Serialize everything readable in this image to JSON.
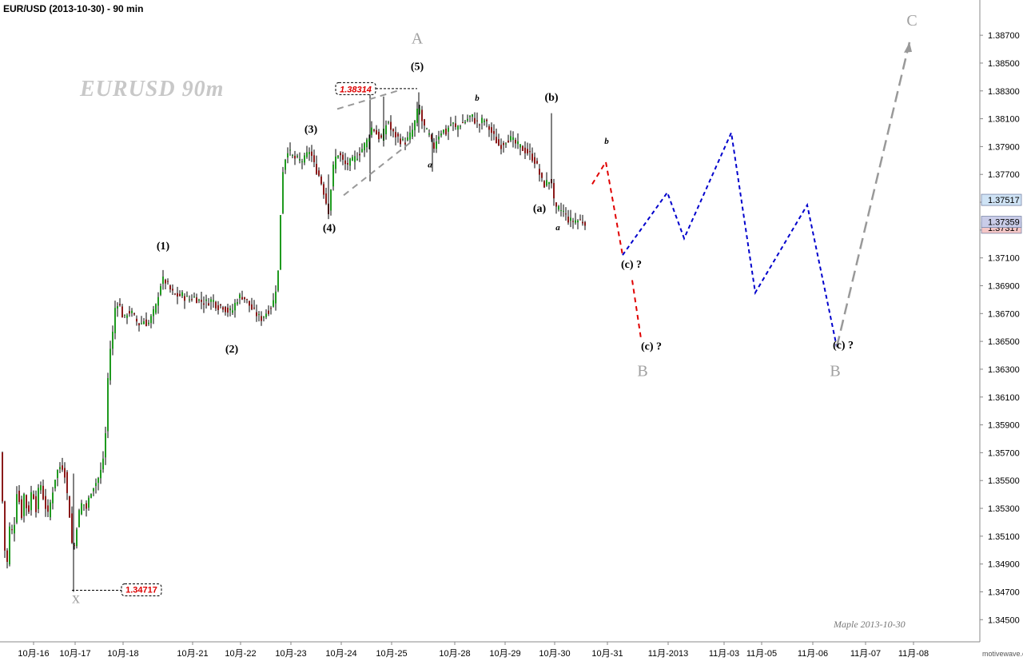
{
  "header": {
    "title": "EUR/USD (2013-10-30) - 90 min"
  },
  "watermark": "EURUSD  90m",
  "signature": "Maple  2013-10-30",
  "brand": "motivewave.com",
  "colors": {
    "up": "#1f9a1f",
    "down": "#8b1a1a",
    "wick": "#000000",
    "red_path": "#e00000",
    "blue_path": "#0000cc",
    "gray_path": "#999999",
    "label_gray": "#a0a0a0",
    "price_red": "#dd0000"
  },
  "chart_data": {
    "type": "candlestick",
    "title": "EUR/USD (2013-10-30) - 90 min",
    "y_axis": {
      "min": 1.3445,
      "max": 1.3885,
      "side": "right",
      "ticks": [
        "1.34500",
        "1.34700",
        "1.34900",
        "1.35100",
        "1.35300",
        "1.35500",
        "1.35700",
        "1.35900",
        "1.36100",
        "1.36300",
        "1.36500",
        "1.36700",
        "1.36900",
        "1.37100",
        "1.37300",
        "1.37500",
        "1.37700",
        "1.37900",
        "1.38100",
        "1.38300",
        "1.38500",
        "1.38700"
      ]
    },
    "x_axis": {
      "ticks": [
        "10月-16",
        "10月-17",
        "10月-18",
        "10月-21",
        "10月-22",
        "10月-23",
        "10月-24",
        "10月-25",
        "10月-28",
        "10月-29",
        "10月-30",
        "10月-31",
        "11月-2013",
        "11月-03",
        "11月-05",
        "11月-06",
        "11月-07",
        "11月-08"
      ]
    },
    "price_tags": [
      {
        "text": "1.37517",
        "value": 1.37517,
        "bg": "#cfe3f5"
      },
      {
        "text": "1.37317",
        "value": 1.37317,
        "bg": "#f5c6c6"
      },
      {
        "text": "1.37359",
        "value": 1.37359,
        "bg": "#c9cce8"
      }
    ],
    "key_levels": [
      {
        "text": "1.38314",
        "value": 1.38314
      },
      {
        "text": "1.34717",
        "value": 1.34717
      }
    ],
    "anchors": [
      [
        0,
        1.357
      ],
      [
        6,
        1.35
      ],
      [
        10,
        1.3488
      ],
      [
        13,
        1.353
      ],
      [
        16,
        1.3505
      ],
      [
        22,
        1.355
      ],
      [
        26,
        1.352
      ],
      [
        30,
        1.354
      ],
      [
        35,
        1.3525
      ],
      [
        40,
        1.3545
      ],
      [
        45,
        1.353
      ],
      [
        50,
        1.355
      ],
      [
        55,
        1.3535
      ],
      [
        60,
        1.3525
      ],
      [
        65,
        1.354
      ],
      [
        70,
        1.3555
      ],
      [
        75,
        1.356
      ],
      [
        80,
        1.356
      ],
      [
        84,
        1.354
      ],
      [
        86,
        1.3528
      ],
      [
        89,
        1.352
      ],
      [
        91,
        1.349
      ],
      [
        94,
        1.351
      ],
      [
        98,
        1.3525
      ],
      [
        103,
        1.3535
      ],
      [
        108,
        1.353
      ],
      [
        115,
        1.3545
      ],
      [
        122,
        1.355
      ],
      [
        128,
        1.356
      ],
      [
        133,
        1.359
      ],
      [
        136,
        1.364
      ],
      [
        140,
        1.365
      ],
      [
        145,
        1.368
      ],
      [
        150,
        1.3675
      ],
      [
        155,
        1.3665
      ],
      [
        160,
        1.3672
      ],
      [
        165,
        1.367
      ],
      [
        170,
        1.3665
      ],
      [
        175,
        1.3662
      ],
      [
        180,
        1.3665
      ],
      [
        185,
        1.3662
      ],
      [
        190,
        1.3668
      ],
      [
        195,
        1.3675
      ],
      [
        200,
        1.369
      ],
      [
        205,
        1.3695
      ],
      [
        210,
        1.369
      ],
      [
        215,
        1.3685
      ],
      [
        220,
        1.3683
      ],
      [
        228,
        1.3683
      ],
      [
        236,
        1.368
      ],
      [
        242,
        1.3682
      ],
      [
        250,
        1.3679
      ],
      [
        258,
        1.3678
      ],
      [
        266,
        1.368
      ],
      [
        272,
        1.3675
      ],
      [
        278,
        1.3676
      ],
      [
        284,
        1.3672
      ],
      [
        290,
        1.3671
      ],
      [
        296,
        1.368
      ],
      [
        302,
        1.3683
      ],
      [
        308,
        1.368
      ],
      [
        314,
        1.3674
      ],
      [
        320,
        1.367
      ],
      [
        326,
        1.3666
      ],
      [
        332,
        1.367
      ],
      [
        338,
        1.3674
      ],
      [
        343,
        1.368
      ],
      [
        348,
        1.37
      ],
      [
        351,
        1.3742
      ],
      [
        353,
        1.377
      ],
      [
        356,
        1.378
      ],
      [
        360,
        1.3788
      ],
      [
        365,
        1.3783
      ],
      [
        370,
        1.3781
      ],
      [
        375,
        1.378
      ],
      [
        380,
        1.378
      ],
      [
        385,
        1.3785
      ],
      [
        388,
        1.3788
      ],
      [
        392,
        1.3778
      ],
      [
        396,
        1.3773
      ],
      [
        400,
        1.3768
      ],
      [
        404,
        1.376
      ],
      [
        408,
        1.375
      ],
      [
        411,
        1.3744
      ],
      [
        414,
        1.376
      ],
      [
        417,
        1.3775
      ],
      [
        420,
        1.3782
      ],
      [
        424,
        1.3786
      ],
      [
        428,
        1.378
      ],
      [
        432,
        1.3777
      ],
      [
        436,
        1.3778
      ],
      [
        440,
        1.3779
      ],
      [
        445,
        1.3782
      ],
      [
        450,
        1.3786
      ],
      [
        455,
        1.379
      ],
      [
        460,
        1.3795
      ],
      [
        463,
        1.38
      ],
      [
        466,
        1.3805
      ],
      [
        470,
        1.38
      ],
      [
        474,
        1.3797
      ],
      [
        478,
        1.3795
      ],
      [
        482,
        1.3805
      ],
      [
        486,
        1.3808
      ],
      [
        490,
        1.38
      ],
      [
        495,
        1.3798
      ],
      [
        500,
        1.3795
      ],
      [
        505,
        1.3793
      ],
      [
        510,
        1.3795
      ],
      [
        515,
        1.38
      ],
      [
        518,
        1.3805
      ],
      [
        521,
        1.3812
      ],
      [
        524,
        1.382
      ],
      [
        527,
        1.381
      ],
      [
        530,
        1.3805
      ],
      [
        534,
        1.38
      ],
      [
        538,
        1.3797
      ],
      [
        542,
        1.3788
      ],
      [
        546,
        1.3795
      ],
      [
        550,
        1.38
      ],
      [
        554,
        1.3802
      ],
      [
        558,
        1.38
      ],
      [
        562,
        1.3805
      ],
      [
        566,
        1.3807
      ],
      [
        570,
        1.3803
      ],
      [
        575,
        1.3806
      ],
      [
        580,
        1.3807
      ],
      [
        585,
        1.381
      ],
      [
        590,
        1.3812
      ],
      [
        595,
        1.3808
      ],
      [
        600,
        1.3806
      ],
      [
        605,
        1.381
      ],
      [
        610,
        1.3805
      ],
      [
        615,
        1.38
      ],
      [
        620,
        1.3795
      ],
      [
        625,
        1.379
      ],
      [
        630,
        1.3793
      ],
      [
        635,
        1.3796
      ],
      [
        640,
        1.3795
      ],
      [
        645,
        1.3792
      ],
      [
        650,
        1.379
      ],
      [
        655,
        1.3788
      ],
      [
        660,
        1.3786
      ],
      [
        665,
        1.3783
      ],
      [
        670,
        1.3779
      ],
      [
        674,
        1.3772
      ],
      [
        678,
        1.3765
      ],
      [
        682,
        1.3762
      ],
      [
        686,
        1.3766
      ],
      [
        690,
        1.3765
      ],
      [
        693,
        1.375
      ],
      [
        696,
        1.3744
      ],
      [
        700,
        1.3745
      ],
      [
        705,
        1.3743
      ],
      [
        710,
        1.3738
      ],
      [
        715,
        1.3736
      ],
      [
        720,
        1.3737
      ],
      [
        725,
        1.3737
      ],
      [
        730,
        1.3736
      ],
      [
        733,
        1.3736
      ]
    ],
    "forecast_paths": [
      {
        "color_key": "red_path",
        "dash": "6,5",
        "points": [
          [
            741,
            1.3763
          ],
          [
            758,
            1.3779
          ],
          [
            779,
            1.3712
          ]
        ]
      },
      {
        "color_key": "red_path",
        "dash": "6,5",
        "points": [
          [
            791,
            1.3694
          ],
          [
            802,
            1.3652
          ]
        ]
      },
      {
        "color_key": "blue_path",
        "dash": "5,4",
        "points": [
          [
            779,
            1.3712
          ],
          [
            835,
            1.3757
          ],
          [
            856,
            1.3724
          ],
          [
            915,
            1.38
          ],
          [
            945,
            1.3685
          ],
          [
            1010,
            1.3748
          ],
          [
            1047,
            1.3646
          ]
        ]
      },
      {
        "color_key": "gray_path",
        "dash": "14,7",
        "points": [
          [
            1047,
            1.3646
          ],
          [
            1138,
            1.3865
          ]
        ]
      }
    ],
    "guide_lines": [
      {
        "color_key": "gray_path",
        "dash": "8,6",
        "points": [
          [
            422,
            1.3817
          ],
          [
            497,
            1.383
          ]
        ]
      },
      {
        "color_key": "gray_path",
        "dash": "8,6",
        "points": [
          [
            430,
            1.3755
          ],
          [
            518,
            1.3795
          ]
        ]
      }
    ],
    "wave_labels": [
      {
        "text": "A",
        "x": 522,
        "y": 1.3864,
        "cls": "big"
      },
      {
        "text": "(5)",
        "x": 522,
        "y": 1.3845,
        "cls": "paren"
      },
      {
        "text": "(3)",
        "x": 389,
        "y": 1.38,
        "cls": "paren"
      },
      {
        "text": "(4)",
        "x": 412,
        "y": 1.3729,
        "cls": "paren"
      },
      {
        "text": "(1)",
        "x": 204,
        "y": 1.3716,
        "cls": "paren"
      },
      {
        "text": "(2)",
        "x": 290,
        "y": 1.3642,
        "cls": "paren"
      },
      {
        "text": "(b)",
        "x": 690,
        "y": 1.3823,
        "cls": "paren"
      },
      {
        "text": "(a)",
        "x": 675,
        "y": 1.3743,
        "cls": "paren"
      },
      {
        "text": "a",
        "x": 698,
        "y": 1.373,
        "cls": "small"
      },
      {
        "text": "a",
        "x": 538,
        "y": 1.3775,
        "cls": "small"
      },
      {
        "text": "b",
        "x": 597,
        "y": 1.3823,
        "cls": "small"
      },
      {
        "text": "b",
        "x": 759,
        "y": 1.3792,
        "cls": "small"
      },
      {
        "text": "(c) ?",
        "x": 790,
        "y": 1.3703,
        "cls": "paren"
      },
      {
        "text": "(c) ?",
        "x": 815,
        "y": 1.3644,
        "cls": "paren"
      },
      {
        "text": "B",
        "x": 804,
        "y": 1.3625,
        "cls": "big"
      },
      {
        "text": "(c) ?",
        "x": 1055,
        "y": 1.3645,
        "cls": "paren"
      },
      {
        "text": "B",
        "x": 1045,
        "y": 1.3625,
        "cls": "big"
      },
      {
        "text": "C",
        "x": 1141,
        "y": 1.3877,
        "cls": "big"
      },
      {
        "text": "x",
        "x": 95,
        "y": 1.3462,
        "cls": "xlab"
      }
    ]
  }
}
